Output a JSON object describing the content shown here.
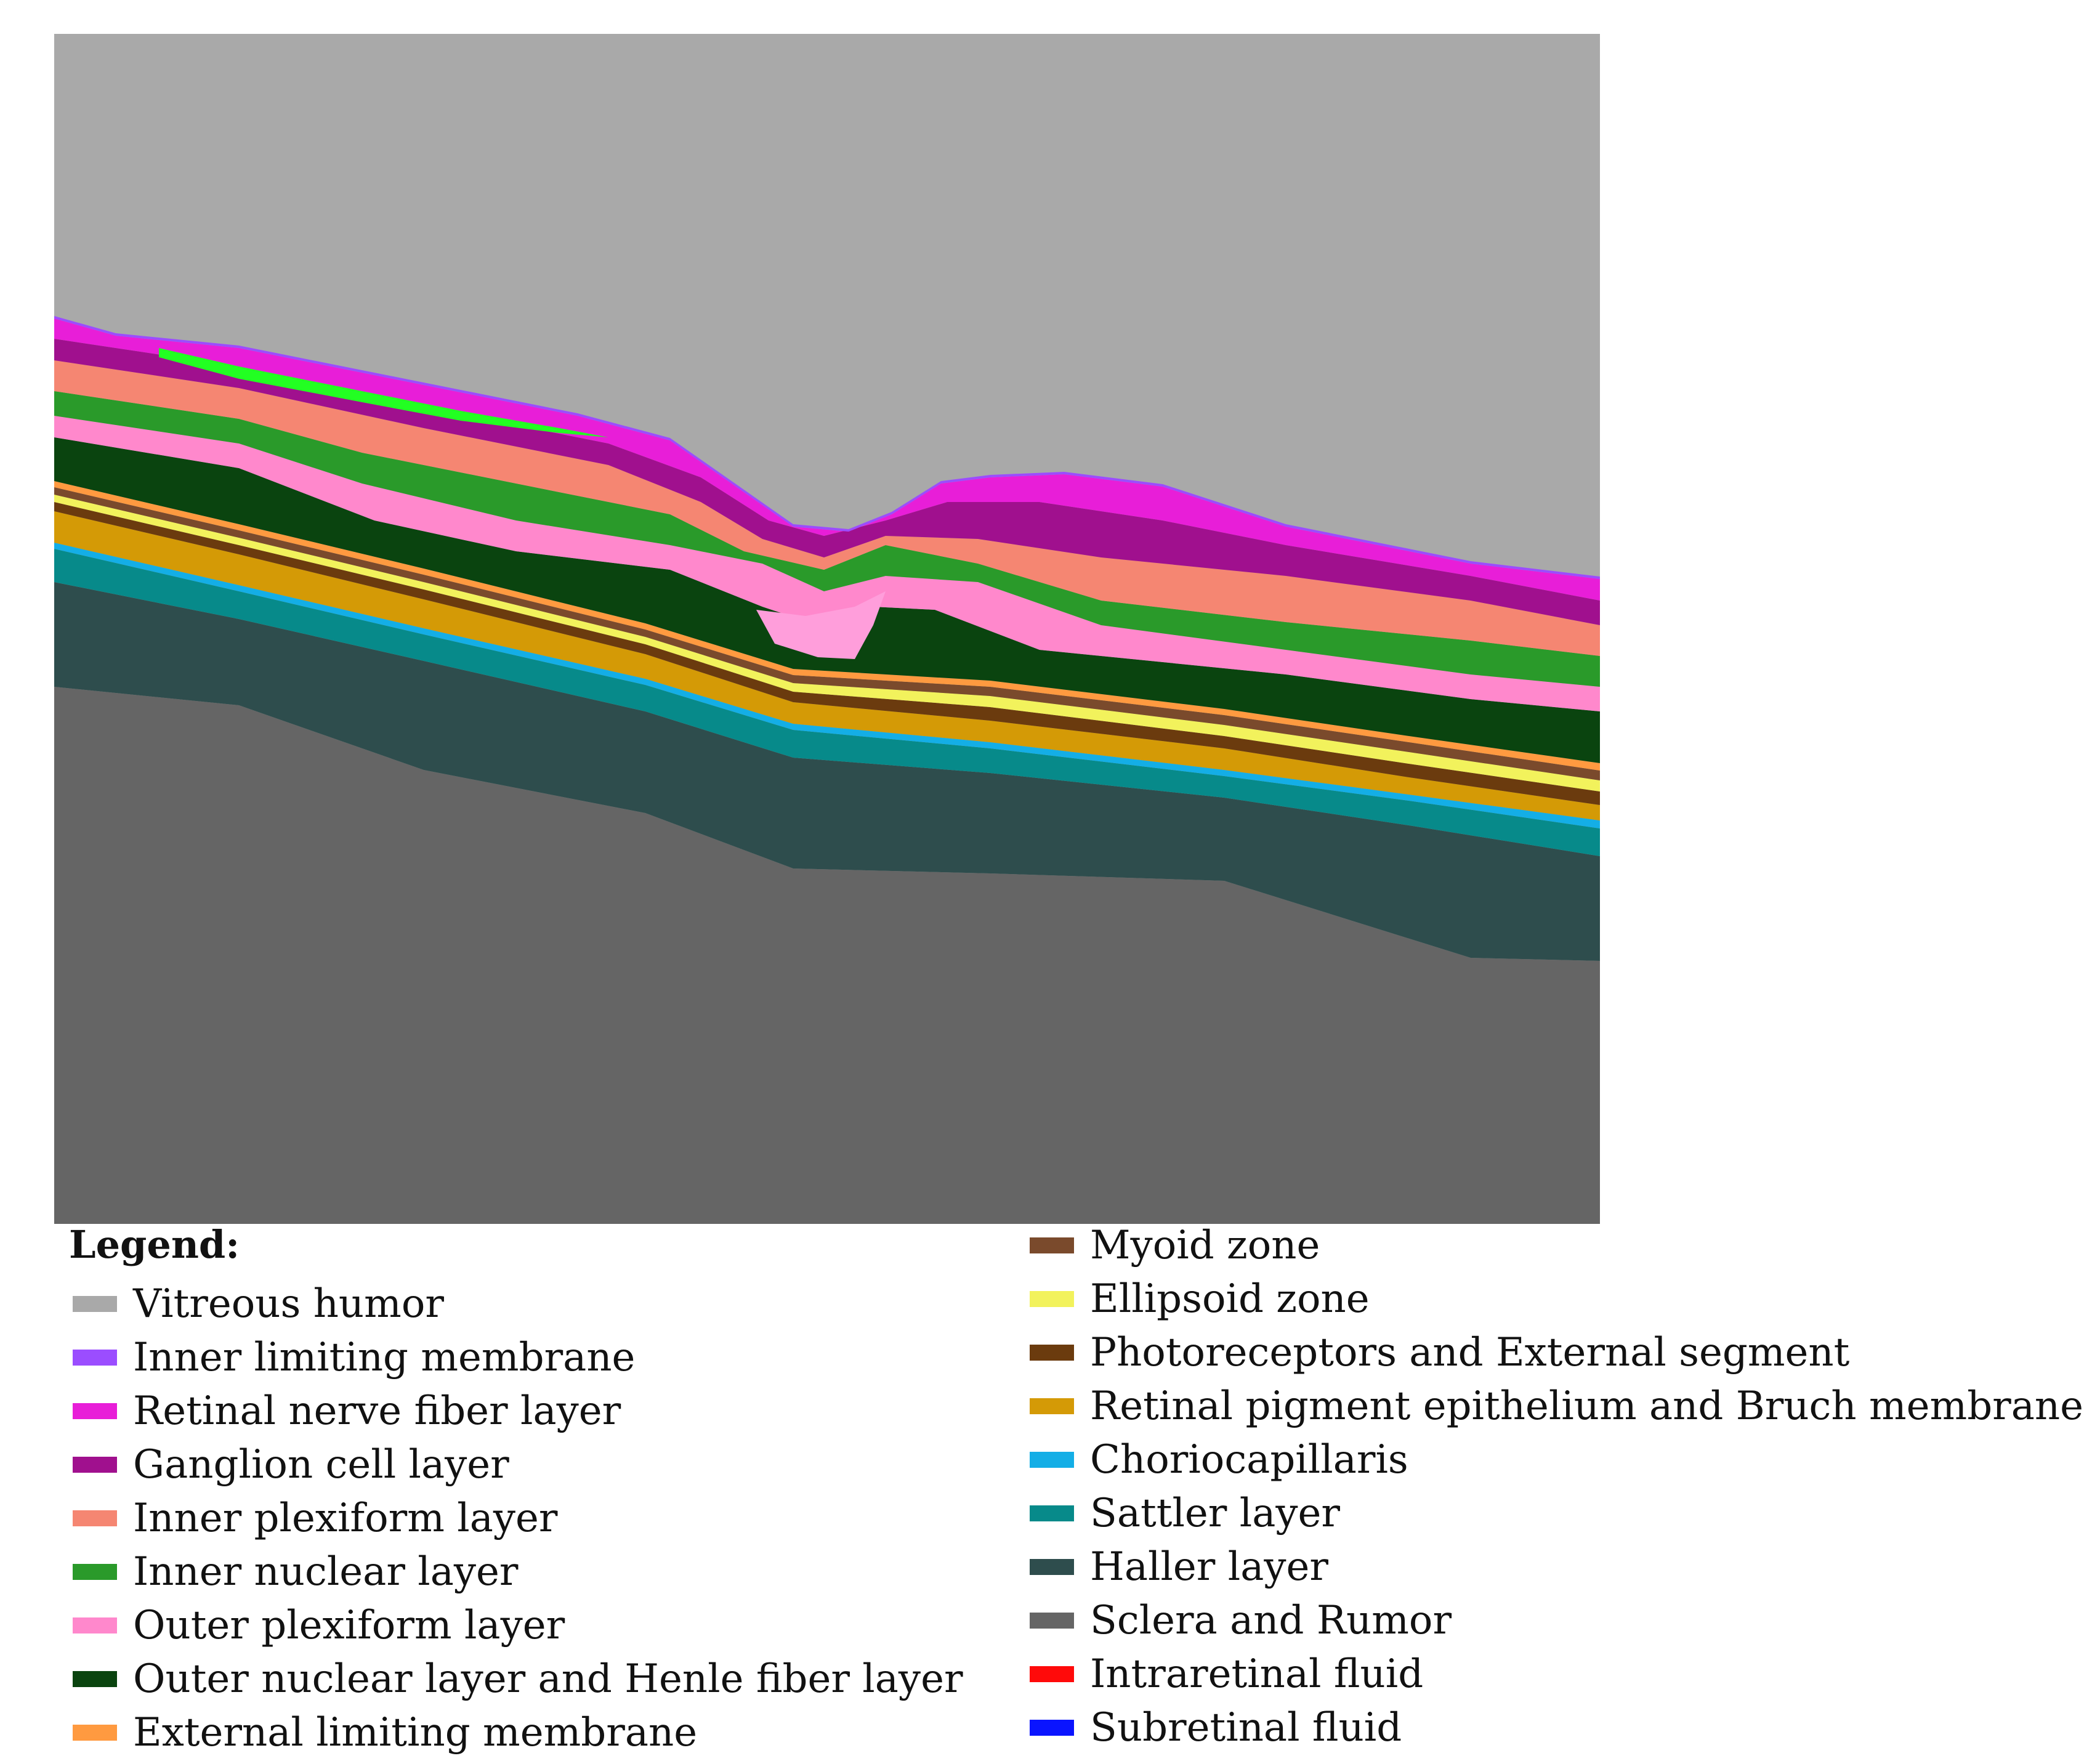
{
  "figure": {
    "legend_title": "Legend:",
    "layers": [
      {
        "id": "vitreous",
        "name": "Vitreous humor",
        "color": "#a9a9a9"
      },
      {
        "id": "ilm",
        "name": "Inner limiting membrane",
        "color": "#9b4dff"
      },
      {
        "id": "rnfl",
        "name": "Retinal nerve fiber layer",
        "color": "#e81ed8"
      },
      {
        "id": "gcl",
        "name": "Ganglion cell layer",
        "color": "#a0108e"
      },
      {
        "id": "ipl",
        "name": "Inner plexiform layer",
        "color": "#f58672"
      },
      {
        "id": "inl",
        "name": "Inner nuclear layer",
        "color": "#2a9a2a"
      },
      {
        "id": "opl",
        "name": "Outer plexiform layer",
        "color": "#ff88cc"
      },
      {
        "id": "onl",
        "name": "Outer nuclear layer and Henle fiber layer",
        "color": "#0a440f"
      },
      {
        "id": "elm",
        "name": "External limiting membrane",
        "color": "#ff9a40"
      },
      {
        "id": "myoid",
        "name": "Myoid zone",
        "color": "#7a4a2c"
      },
      {
        "id": "ez",
        "name": "Ellipsoid zone",
        "color": "#f2f25c"
      },
      {
        "id": "pes",
        "name": "Photoreceptors and External segment",
        "color": "#6b3b0e"
      },
      {
        "id": "rpe",
        "name": "Retinal pigment epithelium and Bruch membrane",
        "color": "#d49a06"
      },
      {
        "id": "chc",
        "name": "Choriocapillaris",
        "color": "#14aee6"
      },
      {
        "id": "sattler",
        "name": "Sattler layer",
        "color": "#078a8a"
      },
      {
        "id": "haller",
        "name": "Haller layer",
        "color": "#2e4d4d"
      },
      {
        "id": "sclera",
        "name": "Sclera and Rumor",
        "color": "#656565"
      },
      {
        "id": "irf",
        "name": "Intraretinal fluid",
        "color": "#ff0a0a"
      },
      {
        "id": "srf",
        "name": "Subretinal fluid",
        "color": "#0a14ff"
      }
    ],
    "highlight_colors": {
      "bright_green": "#22ff22",
      "light_pink": "#ff9edb"
    }
  }
}
